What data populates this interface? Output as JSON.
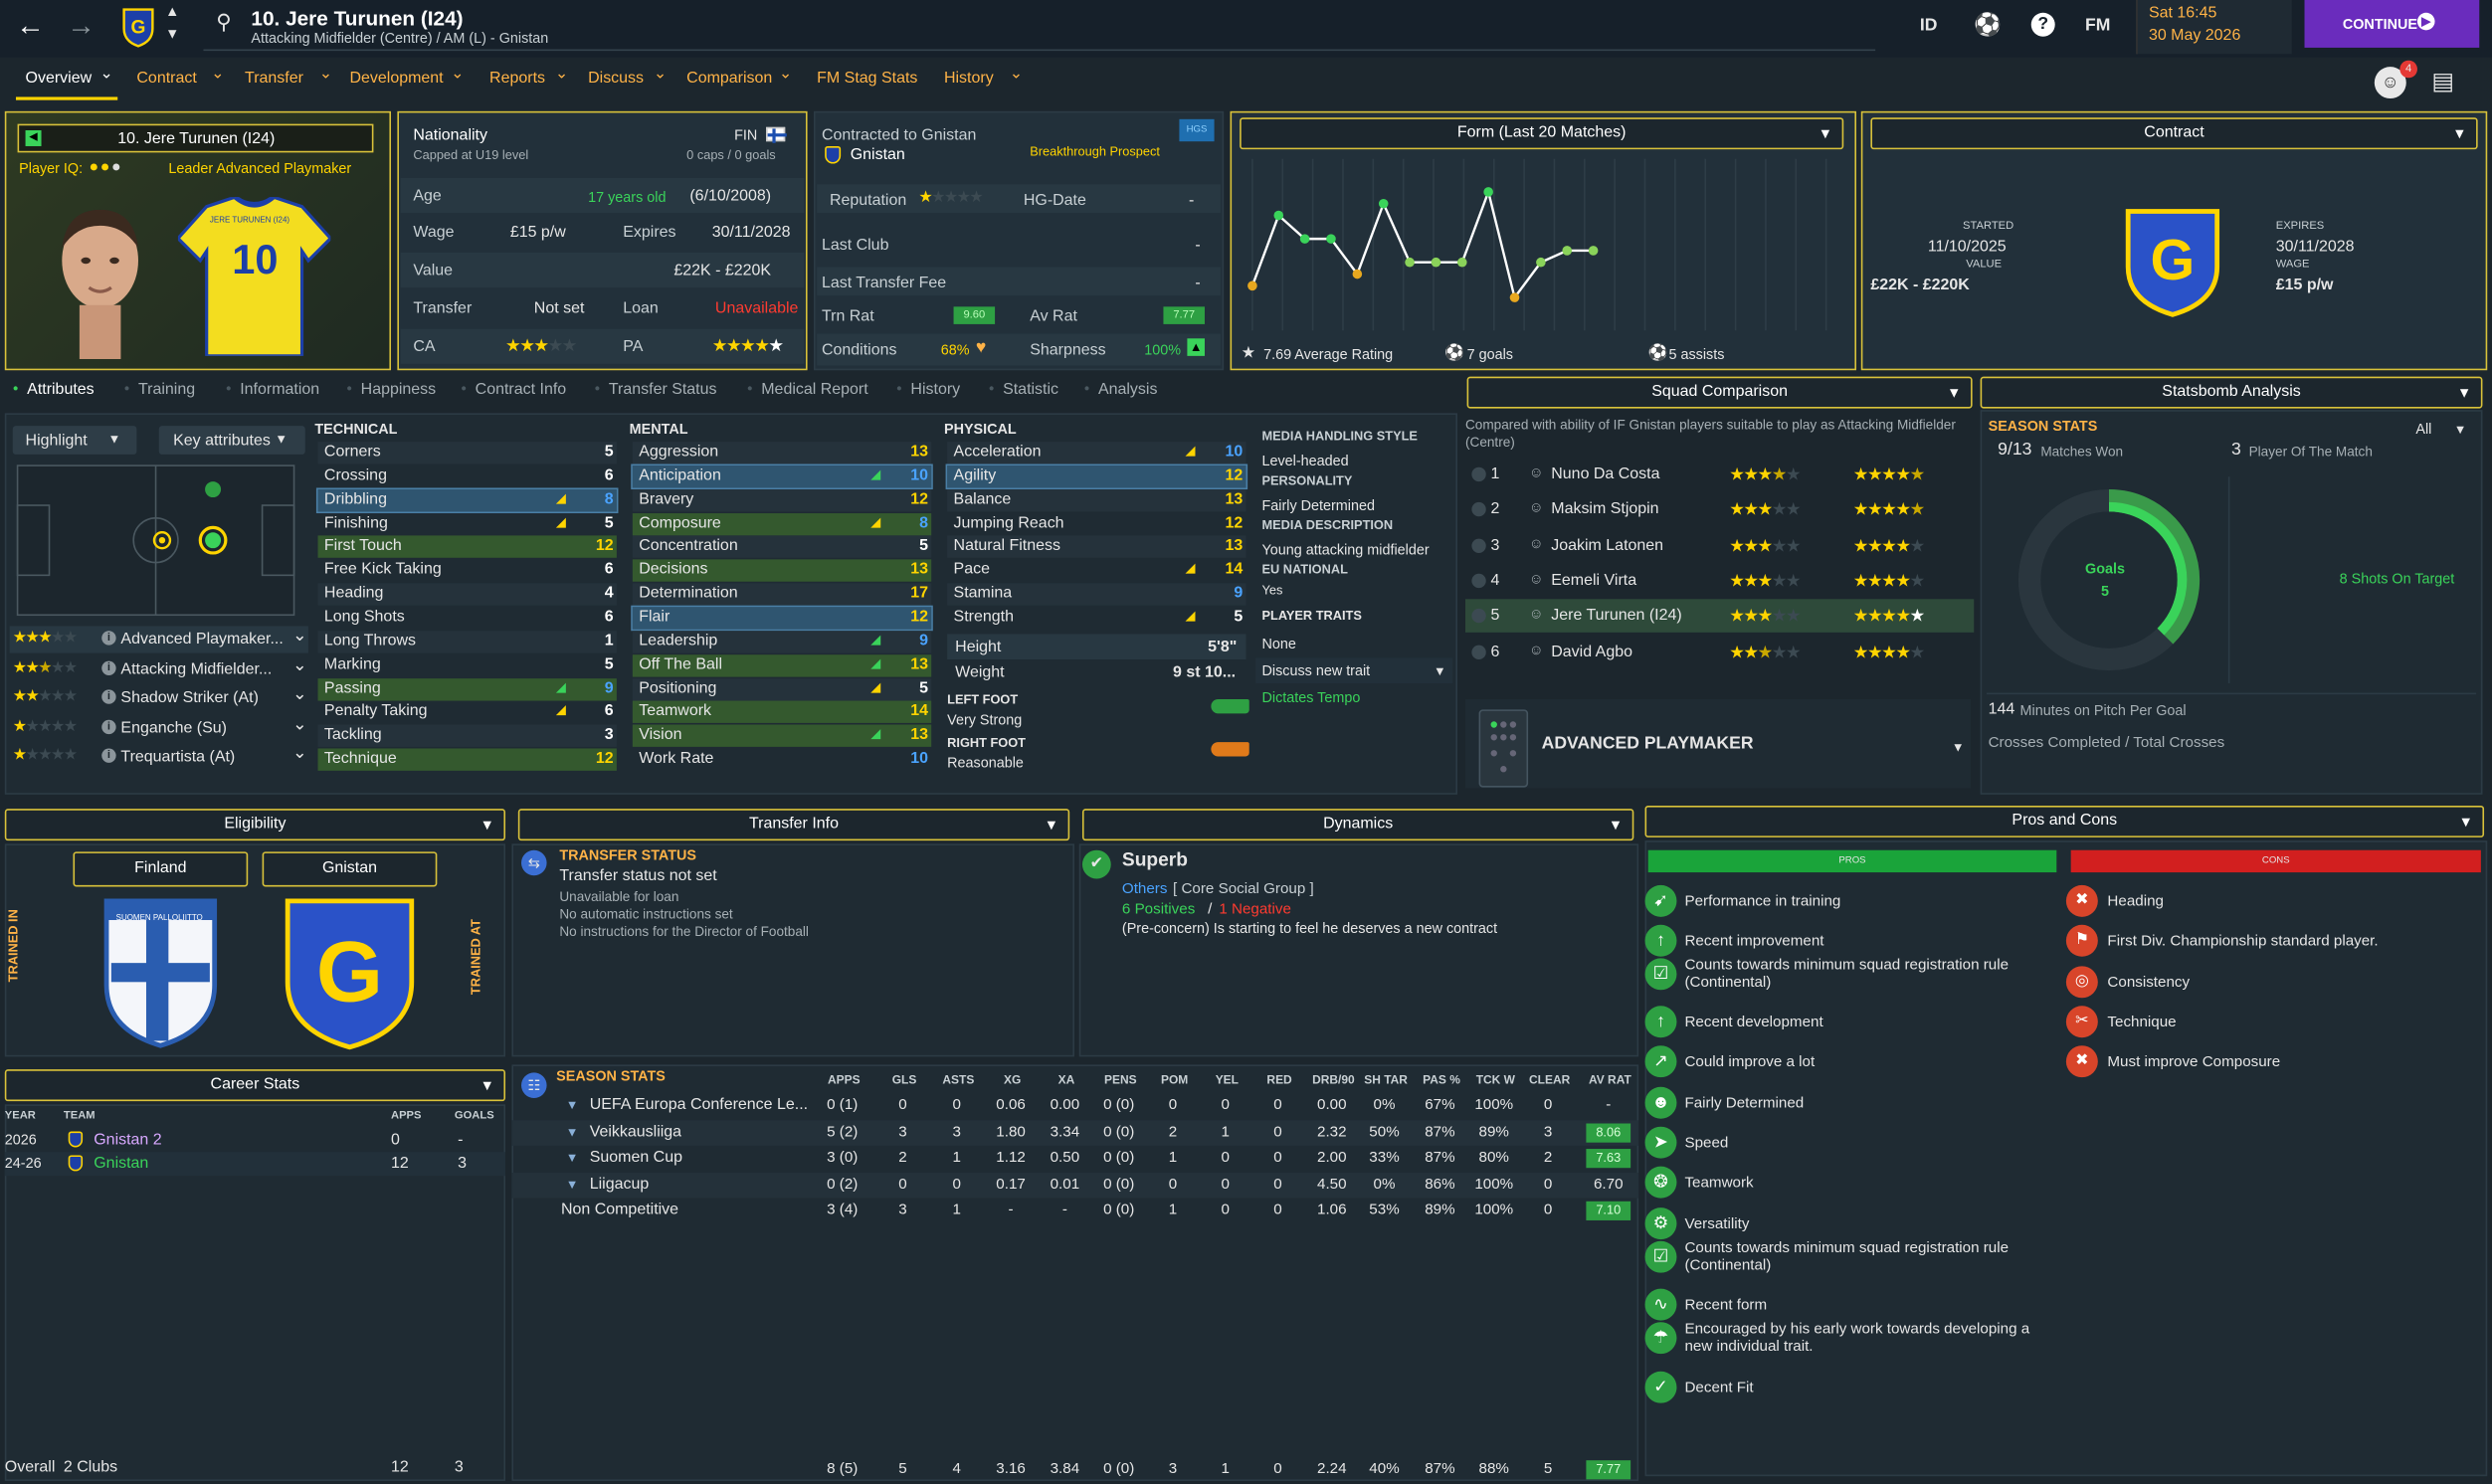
{
  "topbar": {
    "player_name": "10. Jere Turunen (I24)",
    "subtitle": "Attacking Midfielder (Centre) / AM (L) - Gnistan",
    "id_btn": "ID",
    "fm_btn": "FM",
    "time": "Sat 16:45",
    "date": "30 May 2026",
    "continue": "CONTINUE",
    "notif_count": "4"
  },
  "nav": [
    "Overview",
    "Contract",
    "Transfer",
    "Development",
    "Reports",
    "Discuss",
    "Comparison",
    "FM Stag Stats",
    "History"
  ],
  "profile": {
    "name": "10. Jere Turunen (I24)",
    "iq_label": "Player IQ:",
    "role": "Leader Advanced Playmaker",
    "shirt_name": "JERE TURUNEN (I24)",
    "shirt_num": "10"
  },
  "bio": {
    "nationality_label": "Nationality",
    "nationality": "FIN",
    "capped": "Capped at U19 level",
    "caps": "0 caps / 0 goals",
    "age_label": "Age",
    "age_years": "17 years old",
    "dob": "(6/10/2008)",
    "wage_label": "Wage",
    "wage": "£15 p/w",
    "expires_label": "Expires",
    "expires": "30/11/2028",
    "value_label": "Value",
    "value": "£22K - £220K",
    "transfer_label": "Transfer",
    "transfer": "Not set",
    "loan_label": "Loan",
    "loan": "Unavailable",
    "ca_label": "CA",
    "pa_label": "PA"
  },
  "club": {
    "contracted_label": "Contracted to Gnistan",
    "club": "Gnistan",
    "prospect": "Breakthrough Prospect",
    "hgs": "HGS",
    "rep_label": "Reputation",
    "hg_label": "HG-Date",
    "hg": "-",
    "lastclub_label": "Last Club",
    "lastclub": "-",
    "ltf_label": "Last Transfer Fee",
    "ltf": "-",
    "trn_label": "Trn Rat",
    "trn": "9.60",
    "av_label": "Av Rat",
    "av": "7.77",
    "cond_label": "Conditions",
    "cond": "68%",
    "sharp_label": "Sharpness",
    "sharp": "100%"
  },
  "form": {
    "title": "Form (Last 20 Matches)",
    "avg": "7.69 Average Rating",
    "goals": "7 goals",
    "assists": "5 assists",
    "points": [
      7.3,
      7.9,
      7.7,
      7.7,
      7.4,
      8.0,
      7.5,
      7.5,
      7.5,
      8.1,
      7.2,
      7.5,
      7.6,
      7.6
    ]
  },
  "contract": {
    "title": "Contract",
    "started_label": "STARTED",
    "started": "11/10/2025",
    "value_label": "VALUE",
    "value": "£22K - £220K",
    "expires_label": "EXPIRES",
    "expires": "30/11/2028",
    "wage_label": "WAGE",
    "wage": "£15 p/w"
  },
  "subtabs": [
    "Attributes",
    "Training",
    "Information",
    "Happiness",
    "Contract Info",
    "Transfer Status",
    "Medical Report",
    "History",
    "Statistic",
    "Analysis"
  ],
  "attr_controls": {
    "highlight": "Highlight",
    "key": "Key attributes"
  },
  "roles": [
    {
      "name": "Advanced Playmaker...",
      "stars": 3
    },
    {
      "name": "Attacking Midfielder...",
      "stars": 2.5
    },
    {
      "name": "Shadow Striker (At)",
      "stars": 2
    },
    {
      "name": "Enganche (Su)",
      "stars": 1
    },
    {
      "name": "Trequartista (At)",
      "stars": 1
    }
  ],
  "technical": {
    "title": "TECHNICAL",
    "items": [
      [
        "Corners",
        "5"
      ],
      [
        "Crossing",
        "6"
      ],
      [
        "Dribbling",
        "8"
      ],
      [
        "Finishing",
        "5"
      ],
      [
        "First Touch",
        "12"
      ],
      [
        "Free Kick Taking",
        "6"
      ],
      [
        "Heading",
        "4"
      ],
      [
        "Long Shots",
        "6"
      ],
      [
        "Long Throws",
        "1"
      ],
      [
        "Marking",
        "5"
      ],
      [
        "Passing",
        "9"
      ],
      [
        "Penalty Taking",
        "6"
      ],
      [
        "Tackling",
        "3"
      ],
      [
        "Technique",
        "12"
      ]
    ]
  },
  "mental": {
    "title": "MENTAL",
    "items": [
      [
        "Aggression",
        "13"
      ],
      [
        "Anticipation",
        "10"
      ],
      [
        "Bravery",
        "12"
      ],
      [
        "Composure",
        "8"
      ],
      [
        "Concentration",
        "5"
      ],
      [
        "Decisions",
        "13"
      ],
      [
        "Determination",
        "17"
      ],
      [
        "Flair",
        "12"
      ],
      [
        "Leadership",
        "9"
      ],
      [
        "Off The Ball",
        "13"
      ],
      [
        "Positioning",
        "5"
      ],
      [
        "Teamwork",
        "14"
      ],
      [
        "Vision",
        "13"
      ],
      [
        "Work Rate",
        "10"
      ]
    ]
  },
  "physical": {
    "title": "PHYSICAL",
    "items": [
      [
        "Acceleration",
        "10"
      ],
      [
        "Agility",
        "12"
      ],
      [
        "Balance",
        "13"
      ],
      [
        "Jumping Reach",
        "12"
      ],
      [
        "Natural Fitness",
        "13"
      ],
      [
        "Pace",
        "14"
      ],
      [
        "Stamina",
        "9"
      ],
      [
        "Strength",
        "5"
      ]
    ],
    "height_label": "Height",
    "height": "5'8\"",
    "weight_label": "Weight",
    "weight": "9 st 10...",
    "lf_label": "LEFT FOOT",
    "lf": "Very Strong",
    "rf_label": "RIGHT FOOT",
    "rf": "Reasonable"
  },
  "media": {
    "mh_label": "MEDIA HANDLING STYLE",
    "mh": "Level-headed",
    "pers_label": "PERSONALITY",
    "pers": "Fairly Determined",
    "md_label": "MEDIA DESCRIPTION",
    "md": "Young attacking midfielder",
    "eu_label": "EU NATIONAL",
    "eu": "Yes",
    "traits_label": "PLAYER TRAITS",
    "traits": "None",
    "discuss": "Discuss new trait",
    "trait1": "Dictates Tempo"
  },
  "squad": {
    "title": "Squad Comparison",
    "desc": "Compared with ability of IF Gnistan players suitable to play as Attacking Midfielder (Centre)",
    "players": [
      [
        "1",
        "Nuno Da Costa"
      ],
      [
        "2",
        "Maksim Stjopin"
      ],
      [
        "3",
        "Joakim Latonen"
      ],
      [
        "4",
        "Eemeli Virta"
      ],
      [
        "5",
        "Jere Turunen (I24)"
      ],
      [
        "6",
        "David Agbo"
      ]
    ],
    "role": "ADVANCED PLAYMAKER"
  },
  "statsbomb": {
    "title": "Statsbomb Analysis",
    "season": "SEASON STATS",
    "filter": "All",
    "won": "9/13",
    "won_label": "Matches Won",
    "potm": "3",
    "potm_label": "Player Of The Match",
    "goals_label": "Goals",
    "goals": "5",
    "shots": "8 Shots On Target",
    "mpg": "144",
    "mpg_label": "Minutes on Pitch Per Goal",
    "crosses": "Crosses Completed / Total Crosses"
  },
  "eligibility": {
    "title": "Eligibility",
    "country": "Finland",
    "club": "Gnistan",
    "trained_in": "TRAINED IN",
    "trained_at": "TRAINED AT",
    "badge_text": "SUOMEN PALLOLIITTO"
  },
  "transfer": {
    "title": "Transfer Info",
    "status_label": "TRANSFER STATUS",
    "status": "Transfer status not set",
    "l1": "Unavailable for loan",
    "l2": "No automatic instructions set",
    "l3": "No instructions for the Director of Football"
  },
  "dynamics": {
    "title": "Dynamics",
    "level": "Superb",
    "group": "Others",
    "group2": "[ Core Social Group ]",
    "pos": "6 Positives",
    "neg": "1 Negative",
    "concern": "(Pre-concern) Is starting to feel he deserves a new contract"
  },
  "pros_cons": {
    "title": "Pros and Cons",
    "pros_label": "PROS",
    "cons_label": "CONS",
    "pros": [
      "Performance in training",
      "Recent improvement",
      "Counts towards minimum squad registration rule (Continental)",
      "Recent development",
      "Could improve a lot",
      "Fairly Determined",
      "Speed",
      "Teamwork",
      "Versatility",
      "Counts towards minimum squad registration rule (Continental)",
      "Recent form",
      "Encouraged by his early work towards developing a new individual trait.",
      "Decent Fit"
    ],
    "cons": [
      "Heading",
      "First Div. Championship standard player.",
      "Consistency",
      "Technique",
      "Must improve Composure"
    ]
  },
  "career": {
    "title": "Career Stats",
    "h_year": "YEAR",
    "h_team": "TEAM",
    "h_apps": "APPS",
    "h_goals": "GOALS",
    "rows": [
      [
        "2026",
        "Gnistan 2",
        "0",
        "-"
      ],
      [
        "24-26",
        "Gnistan",
        "12",
        "3"
      ]
    ],
    "overall": "Overall",
    "clubs": "2 Clubs",
    "o_apps": "12",
    "o_goals": "3"
  },
  "season": {
    "title": "SEASON STATS",
    "headers": [
      "APPS",
      "GLS",
      "ASTS",
      "XG",
      "XA",
      "PENS",
      "POM",
      "YEL",
      "RED",
      "DRB/90",
      "SH TAR",
      "PAS %",
      "TCK W",
      "CLEAR",
      "AV RAT"
    ],
    "rows": [
      [
        "UEFA Europa Conference Le...",
        "0 (1)",
        "0",
        "0",
        "0.06",
        "0.00",
        "0 (0)",
        "0",
        "0",
        "0",
        "0.00",
        "0%",
        "67%",
        "100%",
        "0",
        "-"
      ],
      [
        "Veikkausliiga",
        "5 (2)",
        "3",
        "3",
        "1.80",
        "3.34",
        "0 (0)",
        "2",
        "1",
        "0",
        "2.32",
        "50%",
        "87%",
        "89%",
        "3",
        "8.06"
      ],
      [
        "Suomen Cup",
        "3 (0)",
        "2",
        "1",
        "1.12",
        "0.50",
        "0 (0)",
        "1",
        "0",
        "0",
        "2.00",
        "33%",
        "87%",
        "80%",
        "2",
        "7.63"
      ],
      [
        "Liigacup",
        "0 (2)",
        "0",
        "0",
        "0.17",
        "0.01",
        "0 (0)",
        "0",
        "0",
        "0",
        "4.50",
        "0%",
        "86%",
        "100%",
        "0",
        "6.70"
      ],
      [
        "Non Competitive",
        "3 (4)",
        "3",
        "1",
        "-",
        "-",
        "0 (0)",
        "1",
        "0",
        "0",
        "1.06",
        "53%",
        "89%",
        "100%",
        "0",
        "7.10"
      ]
    ],
    "total": [
      "8 (5)",
      "5",
      "4",
      "3.16",
      "3.84",
      "0 (0)",
      "3",
      "1",
      "0",
      "2.24",
      "40%",
      "87%",
      "88%",
      "5",
      "7.77"
    ]
  }
}
